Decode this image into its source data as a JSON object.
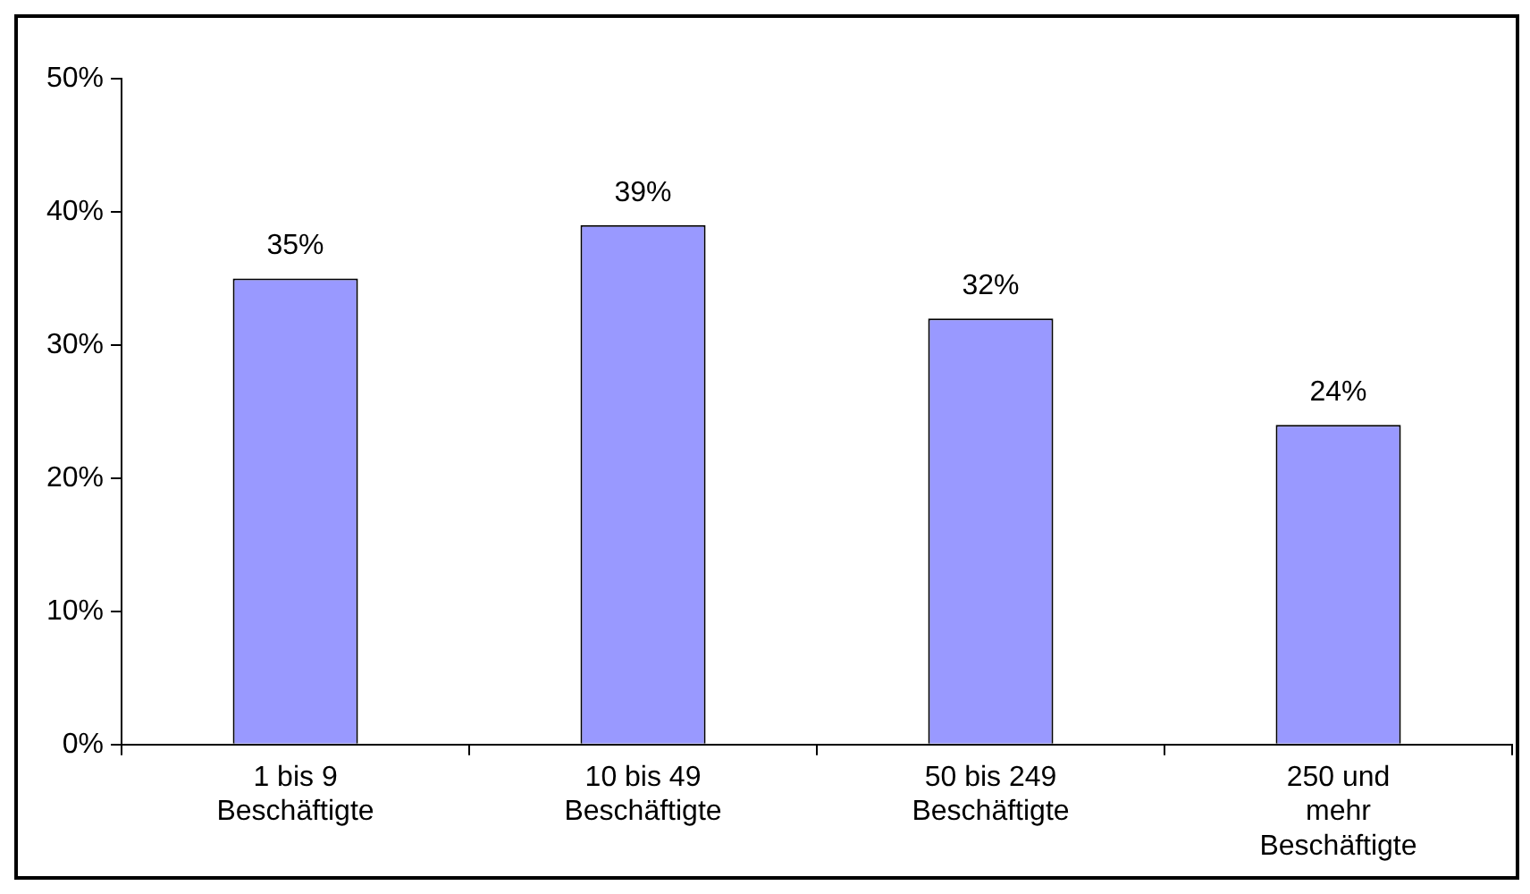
{
  "chart_data": {
    "type": "bar",
    "categories": [
      "1 bis 9 Beschäftigte",
      "10 bis 49 Beschäftigte",
      "50 bis 249 Beschäftigte",
      "250 und mehr Beschäftigte"
    ],
    "values": [
      35,
      39,
      32,
      24
    ],
    "value_labels": [
      "35%",
      "39%",
      "32%",
      "24%"
    ],
    "color": "#9999ff",
    "ylim": [
      0,
      50
    ],
    "yticks": [
      {
        "value": 0,
        "label": "0%"
      },
      {
        "value": 10,
        "label": "10%"
      },
      {
        "value": 20,
        "label": "20%"
      },
      {
        "value": 30,
        "label": "30%"
      },
      {
        "value": 40,
        "label": "40%"
      },
      {
        "value": 50,
        "label": "50%"
      }
    ],
    "grid": false,
    "legend": false
  }
}
